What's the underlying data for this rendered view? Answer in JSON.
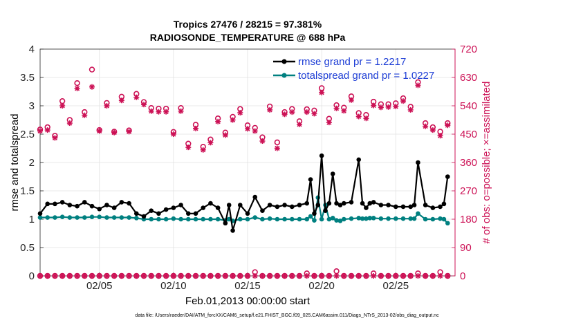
{
  "chart_data": {
    "type": "line",
    "title_line1": "Tropics 27476 / 28215 = 97.381%",
    "title_line2": "RADIOSONDE_TEMPERATURE @ 688 hPa",
    "xlabel": "Feb.01,2013 00:00:00 start",
    "ylabel_left": "rmse and totalspread",
    "ylabel_right": "# of obs: o=possible; ×=assimilated",
    "xlim": [
      0,
      28
    ],
    "ylim_left": [
      0,
      4
    ],
    "ylim_right": [
      0,
      720
    ],
    "x_ticks": [
      {
        "x": 4,
        "label": "02/05"
      },
      {
        "x": 9,
        "label": "02/10"
      },
      {
        "x": 14,
        "label": "02/15"
      },
      {
        "x": 19,
        "label": "02/20"
      },
      {
        "x": 24,
        "label": "02/25"
      }
    ],
    "y_ticks_left": [
      "0",
      "0.5",
      "1",
      "1.5",
      "2",
      "2.5",
      "3",
      "3.5",
      "4"
    ],
    "y_ticks_right": [
      "0",
      "90",
      "180",
      "270",
      "360",
      "450",
      "540",
      "630",
      "720"
    ],
    "grid": true,
    "legend": [
      {
        "label": "rmse grand pr = 1.2217",
        "color": "#000000"
      },
      {
        "label": "totalspread grand pr = 1.0227",
        "color": "#008080"
      }
    ],
    "footer": "data file: /Users/raeder/DAI/ATM_forcXX/CAM6_setup/f.e21.FHIST_BGC.f09_025.CAM6assim.011/Diags_NTrS_2013-02/obs_diag_output.nc",
    "colors": {
      "rmse": "#000000",
      "spread": "#008080",
      "obs": "#cc1155",
      "axis_right": "#cc1155"
    },
    "series": [
      {
        "name": "rmse",
        "axis": "left",
        "x": [
          0,
          0.5,
          1,
          1.5,
          2,
          2.5,
          3,
          3.5,
          4,
          4.5,
          5,
          5.5,
          6,
          6.5,
          7,
          7.5,
          8,
          8.5,
          9,
          9.5,
          10,
          10.5,
          11,
          11.5,
          12,
          12.5,
          12.75,
          13,
          13.5,
          14,
          14.5,
          15,
          15.5,
          16,
          16.5,
          17,
          17.5,
          18,
          18.25,
          18.5,
          18.75,
          19,
          19.25,
          19.5,
          19.75,
          20,
          20.25,
          20.5,
          21,
          21.5,
          21.75,
          22,
          22.25,
          22.5,
          23,
          23.5,
          24,
          24.5,
          25,
          25.25,
          25.5,
          26,
          26.5,
          27,
          27.25,
          27.5
        ],
        "values": [
          1.1,
          1.27,
          1.27,
          1.3,
          1.25,
          1.23,
          1.3,
          1.23,
          1.18,
          1.25,
          1.2,
          1.3,
          1.28,
          1.1,
          1.05,
          1.15,
          1.1,
          1.17,
          1.2,
          1.25,
          1.1,
          1.1,
          1.2,
          1.28,
          1.2,
          0.93,
          1.25,
          0.8,
          1.25,
          1.1,
          1.39,
          1.15,
          1.25,
          1.22,
          1.25,
          1.22,
          1.25,
          1.28,
          1.7,
          1.1,
          1.25,
          2.12,
          1.15,
          1.28,
          1.8,
          1.28,
          1.25,
          1.28,
          1.3,
          2.05,
          1.28,
          1.2,
          1.28,
          1.3,
          1.25,
          1.25,
          1.22,
          1.22,
          1.22,
          1.25,
          2.0,
          1.25,
          1.2,
          1.22,
          1.27,
          1.75
        ]
      },
      {
        "name": "totalspread",
        "axis": "left",
        "x": [
          0,
          0.5,
          1,
          1.5,
          2,
          2.5,
          3,
          3.5,
          4,
          4.5,
          5,
          5.5,
          6,
          6.5,
          7,
          7.5,
          8,
          8.5,
          9,
          9.5,
          10,
          10.5,
          11,
          11.5,
          12,
          12.5,
          12.75,
          13,
          13.5,
          14,
          14.5,
          15,
          15.5,
          16,
          16.5,
          17,
          17.5,
          18,
          18.25,
          18.5,
          18.75,
          19,
          19.25,
          19.5,
          19.75,
          20,
          20.25,
          20.5,
          21,
          21.5,
          21.75,
          22,
          22.25,
          22.5,
          23,
          23.5,
          24,
          24.5,
          25,
          25.25,
          25.5,
          26,
          26.5,
          27,
          27.25,
          27.5
        ],
        "values": [
          1.03,
          1.03,
          1.03,
          1.04,
          1.03,
          1.03,
          1.03,
          1.04,
          1.04,
          1.03,
          1.03,
          1.03,
          1.03,
          1.02,
          1.0,
          1.0,
          1.0,
          1.0,
          1.01,
          1.0,
          1.0,
          1.0,
          1.0,
          1.0,
          1.0,
          0.98,
          1.0,
          0.97,
          1.0,
          1.0,
          1.03,
          1.0,
          1.01,
          1.0,
          1.0,
          1.0,
          1.0,
          1.0,
          1.05,
          0.98,
          1.38,
          1.0,
          1.25,
          1.0,
          1.02,
          0.98,
          0.97,
          1.0,
          1.01,
          1.02,
          1.01,
          1.01,
          1.02,
          1.02,
          1.01,
          1.01,
          1.01,
          1.01,
          1.01,
          1.01,
          1.1,
          1.0,
          1.0,
          1.01,
          1.0,
          0.93
        ]
      },
      {
        "name": "obs_possible",
        "axis": "right",
        "x": [
          0,
          0.5,
          1,
          1.5,
          2,
          2.5,
          3,
          3.5,
          4,
          4.5,
          5,
          5.5,
          6,
          6.5,
          7,
          7.5,
          8,
          8.5,
          9,
          9.5,
          10,
          10.5,
          11,
          11.5,
          12,
          12.5,
          13,
          13.5,
          14,
          14.5,
          15,
          15.5,
          16,
          16.5,
          17,
          17.5,
          18,
          18.5,
          19,
          19.5,
          20,
          20.5,
          21,
          21.5,
          22,
          22.5,
          23,
          23.5,
          24,
          24.5,
          25,
          25.5,
          26,
          26.5,
          27,
          27.5
        ],
        "values": [
          465,
          472,
          445,
          555,
          495,
          612,
          520,
          655,
          463,
          549,
          458,
          569,
          462,
          578,
          552,
          533,
          531,
          531,
          457,
          533,
          420,
          480,
          410,
          433,
          500,
          455,
          505,
          530,
          478,
          470,
          440,
          538,
          424,
          520,
          530,
          491,
          529,
          525,
          596,
          499,
          542,
          534,
          570,
          517,
          511,
          553,
          545,
          545,
          548,
          564,
          537,
          615,
          485,
          472,
          458,
          485
        ]
      },
      {
        "name": "obs_assimilated",
        "axis": "right",
        "x": [
          0,
          0.5,
          1,
          1.5,
          2,
          2.5,
          3,
          3.5,
          4,
          4.5,
          5,
          5.5,
          6,
          6.5,
          7,
          7.5,
          8,
          8.5,
          9,
          9.5,
          10,
          10.5,
          11,
          11.5,
          12,
          12.5,
          13,
          13.5,
          14,
          14.5,
          15,
          15.5,
          16,
          16.5,
          17,
          17.5,
          18,
          18.5,
          19,
          19.5,
          20,
          20.5,
          21,
          21.5,
          22,
          22.5,
          23,
          23.5,
          24,
          24.5,
          25,
          25.5,
          26,
          26.5,
          27,
          27.5
        ],
        "values": [
          460,
          463,
          438,
          540,
          485,
          595,
          510,
          600,
          460,
          540,
          455,
          557,
          458,
          567,
          544,
          523,
          521,
          521,
          450,
          523,
          408,
          468,
          400,
          423,
          490,
          447,
          495,
          518,
          467,
          460,
          428,
          527,
          405,
          513,
          520,
          481,
          520,
          515,
          582,
          487,
          532,
          524,
          558,
          506,
          500,
          541,
          535,
          536,
          538,
          555,
          527,
          605,
          475,
          463,
          445,
          478
        ]
      },
      {
        "name": "obs_possible_bottom",
        "axis": "right",
        "x": [
          0,
          0.5,
          1,
          1.5,
          2,
          2.5,
          3,
          3.5,
          4,
          4.5,
          5,
          5.5,
          6,
          6.5,
          7,
          7.5,
          8,
          8.5,
          9,
          9.5,
          10,
          10.5,
          11,
          11.5,
          12,
          12.5,
          13,
          13.5,
          14,
          14.5,
          15,
          15.5,
          16,
          16.5,
          17,
          17.5,
          18,
          18.5,
          19,
          19.5,
          20,
          20.5,
          21,
          21.5,
          22,
          22.5,
          23,
          23.5,
          24,
          24.5,
          25,
          25.5,
          26,
          26.5,
          27,
          27.5
        ],
        "values": [
          0,
          0,
          0,
          0,
          0,
          0,
          0,
          0,
          0,
          0,
          0,
          0,
          0,
          0,
          0,
          0,
          0,
          0,
          0,
          0,
          0,
          0,
          0,
          0,
          0,
          0,
          0,
          0,
          0,
          12,
          0,
          0,
          0,
          0,
          0,
          0,
          8,
          0,
          0,
          0,
          15,
          0,
          0,
          0,
          0,
          8,
          0,
          0,
          0,
          0,
          0,
          8,
          0,
          0,
          12,
          0
        ]
      },
      {
        "name": "obs_assimilated_bottom",
        "axis": "right",
        "x": [
          0,
          0.5,
          1,
          1.5,
          2,
          2.5,
          3,
          3.5,
          4,
          4.5,
          5,
          5.5,
          6,
          6.5,
          7,
          7.5,
          8,
          8.5,
          9,
          9.5,
          10,
          10.5,
          11,
          11.5,
          12,
          12.5,
          13,
          13.5,
          14,
          14.5,
          15,
          15.5,
          16,
          16.5,
          17,
          17.5,
          18,
          18.5,
          19,
          19.5,
          20,
          20.5,
          21,
          21.5,
          22,
          22.5,
          23,
          23.5,
          24,
          24.5,
          25,
          25.5,
          26,
          26.5,
          27,
          27.5
        ],
        "values": [
          0,
          0,
          0,
          0,
          0,
          0,
          0,
          0,
          0,
          0,
          0,
          0,
          0,
          0,
          0,
          0,
          0,
          0,
          0,
          0,
          0,
          0,
          0,
          0,
          0,
          0,
          0,
          0,
          0,
          0,
          0,
          0,
          0,
          0,
          0,
          0,
          0,
          0,
          0,
          0,
          0,
          0,
          0,
          0,
          0,
          0,
          0,
          0,
          0,
          0,
          0,
          0,
          0,
          0,
          0,
          0
        ]
      }
    ]
  }
}
